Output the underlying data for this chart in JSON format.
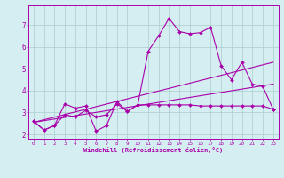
{
  "xlabel": "Windchill (Refroidissement éolien,°C)",
  "background_color": "#d4eef1",
  "grid_color": "#aacccc",
  "line_color": "#aa00aa",
  "xlim": [
    -0.5,
    23.5
  ],
  "ylim": [
    1.8,
    7.9
  ],
  "yticks": [
    2,
    3,
    4,
    5,
    6,
    7
  ],
  "xticks": [
    0,
    1,
    2,
    3,
    4,
    5,
    6,
    7,
    8,
    9,
    10,
    11,
    12,
    13,
    14,
    15,
    16,
    17,
    18,
    19,
    20,
    21,
    22,
    23
  ],
  "line1_x": [
    0,
    1,
    2,
    3,
    4,
    5,
    6,
    7,
    8,
    9,
    10,
    11,
    12,
    13,
    14,
    15,
    16,
    17,
    18,
    19,
    20,
    21,
    22,
    23
  ],
  "line1_y": [
    2.6,
    2.2,
    2.4,
    3.4,
    3.2,
    3.3,
    2.15,
    2.4,
    3.5,
    3.05,
    3.35,
    5.8,
    6.5,
    7.3,
    6.7,
    6.6,
    6.65,
    6.9,
    5.15,
    4.5,
    5.3,
    4.3,
    4.2,
    3.15
  ],
  "line2_x": [
    0,
    1,
    2,
    3,
    4,
    5,
    6,
    7,
    8,
    9,
    10,
    11,
    12,
    13,
    14,
    15,
    16,
    17,
    18,
    19,
    20,
    21,
    22,
    23
  ],
  "line2_y": [
    2.6,
    2.2,
    2.4,
    2.9,
    2.8,
    3.1,
    2.8,
    2.9,
    3.4,
    3.05,
    3.35,
    3.35,
    3.35,
    3.35,
    3.35,
    3.35,
    3.3,
    3.3,
    3.3,
    3.3,
    3.3,
    3.3,
    3.3,
    3.15
  ],
  "line3_x": [
    0,
    23
  ],
  "line3_y": [
    2.55,
    4.3
  ],
  "line4_x": [
    0,
    23
  ],
  "line4_y": [
    2.55,
    5.3
  ]
}
